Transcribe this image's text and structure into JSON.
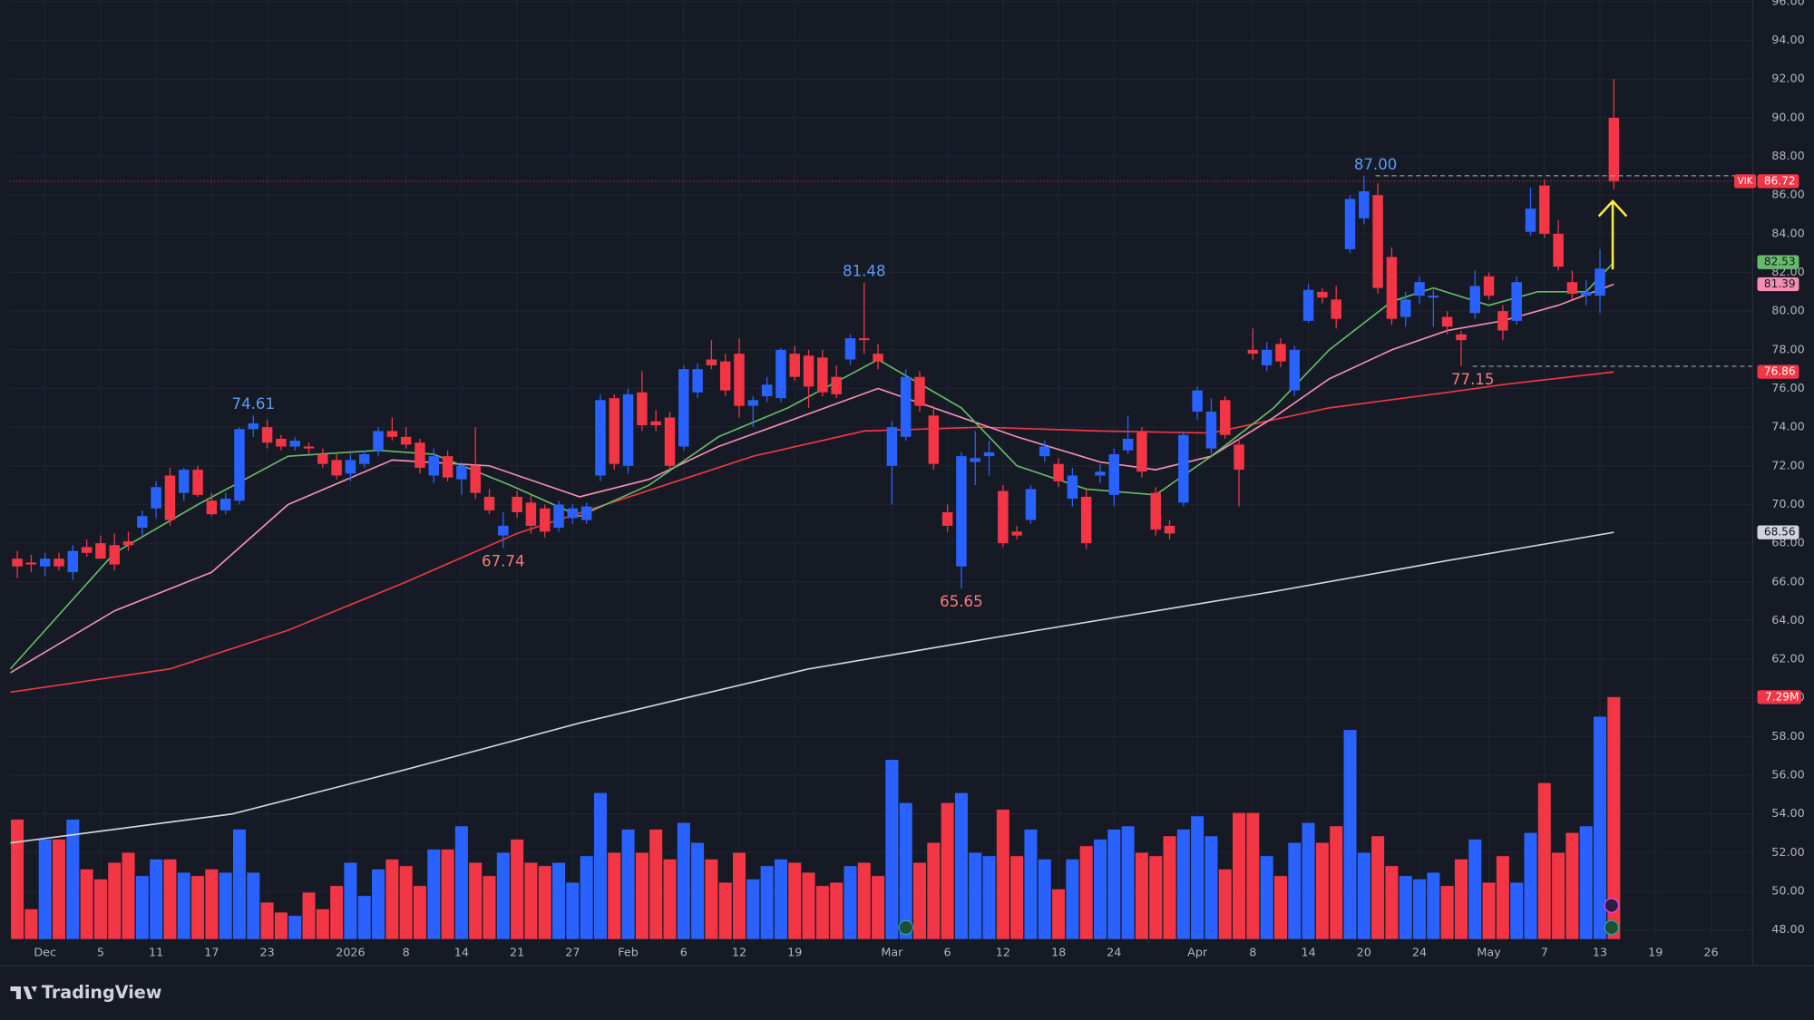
{
  "chart_data": {
    "type": "candlestick",
    "symbol": "VIK",
    "up_color": "#2962ff",
    "down_color": "#f23645",
    "open": [
      67.2,
      67.0,
      66.8,
      67.2,
      66.5,
      67.8,
      68.0,
      67.9,
      68.1,
      68.8,
      69.8,
      71.5,
      70.6,
      71.8,
      70.2,
      69.7,
      70.2,
      73.9,
      74.0,
      73.4,
      73.0,
      73.0,
      72.6,
      72.3,
      71.6,
      72.1,
      72.8,
      73.8,
      73.5,
      73.2,
      71.5,
      72.5,
      71.3,
      72.0,
      70.4,
      68.4,
      70.4,
      70.1,
      69.8,
      68.8,
      69.3,
      69.2,
      71.5,
      75.5,
      72.0,
      75.8,
      74.3,
      74.5,
      73.0,
      75.8,
      77.5,
      77.4,
      77.8,
      75.1,
      75.6,
      75.5,
      77.8,
      77.7,
      77.6,
      76.6,
      77.5,
      78.6,
      77.8,
      72.0,
      73.5,
      76.6,
      74.6,
      69.6,
      66.8,
      72.2,
      72.5,
      70.7,
      68.6,
      69.2,
      72.5,
      72.1,
      70.3,
      70.4,
      71.5,
      70.5,
      72.8,
      73.8,
      70.6,
      68.9,
      70.1,
      74.8,
      72.9,
      75.4,
      73.1,
      78.0,
      77.2,
      78.3,
      75.9,
      79.5,
      81.0,
      80.6,
      83.2,
      84.8,
      86.0,
      82.8,
      79.7,
      80.8,
      80.7,
      79.7,
      78.8,
      79.9,
      81.8,
      80.0,
      79.5,
      84.1,
      86.5,
      84.0,
      81.5,
      80.8,
      80.8,
      90.0
    ],
    "high": [
      67.6,
      67.4,
      67.5,
      67.5,
      67.9,
      68.2,
      68.4,
      68.5,
      68.6,
      69.7,
      71.2,
      71.9,
      71.9,
      72.0,
      70.6,
      70.6,
      74.0,
      74.61,
      74.4,
      73.6,
      73.5,
      73.2,
      72.9,
      72.6,
      72.6,
      72.8,
      74.0,
      74.5,
      74.0,
      73.4,
      72.9,
      72.8,
      72.2,
      74.0,
      70.8,
      69.6,
      70.7,
      70.5,
      70.0,
      70.2,
      70.0,
      70.1,
      75.7,
      75.7,
      76.0,
      76.9,
      74.9,
      74.8,
      77.2,
      77.3,
      78.5,
      77.8,
      78.6,
      75.6,
      76.6,
      78.1,
      78.2,
      78.0,
      78.0,
      77.2,
      78.8,
      81.48,
      78.3,
      74.3,
      77.0,
      76.9,
      75.1,
      70.0,
      72.7,
      73.8,
      73.3,
      71.0,
      68.9,
      71.0,
      73.3,
      72.4,
      71.9,
      70.8,
      72.1,
      72.9,
      74.6,
      74.0,
      70.9,
      69.2,
      73.8,
      76.1,
      75.5,
      75.6,
      73.4,
      79.1,
      78.4,
      78.6,
      78.2,
      81.4,
      81.2,
      81.3,
      86.0,
      87.0,
      86.6,
      83.3,
      81.0,
      81.8,
      81.1,
      80.0,
      79.0,
      82.1,
      82.0,
      80.3,
      81.8,
      86.4,
      86.8,
      84.7,
      82.1,
      81.6,
      83.2,
      92.0
    ],
    "low": [
      66.2,
      66.5,
      66.3,
      66.6,
      66.1,
      67.3,
      67.2,
      66.6,
      67.6,
      68.4,
      69.3,
      68.9,
      70.2,
      70.4,
      69.4,
      69.5,
      70.0,
      73.5,
      72.9,
      72.8,
      72.8,
      72.6,
      71.9,
      71.3,
      71.2,
      71.9,
      72.5,
      73.3,
      72.9,
      71.6,
      71.1,
      71.2,
      70.5,
      70.3,
      69.5,
      67.74,
      69.3,
      68.5,
      68.3,
      68.6,
      69.0,
      69.0,
      71.2,
      71.8,
      71.6,
      73.8,
      73.8,
      71.8,
      72.8,
      75.5,
      77.0,
      75.6,
      74.5,
      74.0,
      75.3,
      75.3,
      76.4,
      75.0,
      75.6,
      75.5,
      77.2,
      77.8,
      77.0,
      70.0,
      73.3,
      74.8,
      71.8,
      68.6,
      65.65,
      71.0,
      71.5,
      67.8,
      68.2,
      69.0,
      72.2,
      70.9,
      69.9,
      67.7,
      71.1,
      69.9,
      72.6,
      71.4,
      68.4,
      68.2,
      69.9,
      74.4,
      72.6,
      73.4,
      69.9,
      77.5,
      76.9,
      77.1,
      75.6,
      79.4,
      80.4,
      79.1,
      83.0,
      84.5,
      80.9,
      79.3,
      79.2,
      80.4,
      79.2,
      78.8,
      77.15,
      79.6,
      80.6,
      78.5,
      79.3,
      83.9,
      83.8,
      82.1,
      80.6,
      80.3,
      79.9,
      86.3
    ],
    "close": [
      66.8,
      66.9,
      67.2,
      66.8,
      67.6,
      67.5,
      67.2,
      66.9,
      67.9,
      69.4,
      70.9,
      69.2,
      71.8,
      70.5,
      69.5,
      70.3,
      73.9,
      74.2,
      73.2,
      73.0,
      73.3,
      72.9,
      72.1,
      71.5,
      72.3,
      72.6,
      73.8,
      73.5,
      73.1,
      71.9,
      72.5,
      71.4,
      72.0,
      70.6,
      69.7,
      68.9,
      69.6,
      68.9,
      68.6,
      70.0,
      69.8,
      69.9,
      75.4,
      72.1,
      75.7,
      74.1,
      74.1,
      72.0,
      77.0,
      77.0,
      77.2,
      75.9,
      75.1,
      75.4,
      76.2,
      78.0,
      76.6,
      76.1,
      75.8,
      75.7,
      78.6,
      78.5,
      77.4,
      74.0,
      76.6,
      75.1,
      72.1,
      68.9,
      72.5,
      72.4,
      72.7,
      68.0,
      68.4,
      70.8,
      73.0,
      71.2,
      71.5,
      68.0,
      71.7,
      72.6,
      73.4,
      71.7,
      68.7,
      68.5,
      73.6,
      75.9,
      74.8,
      73.6,
      71.8,
      77.8,
      78.0,
      77.4,
      78.0,
      81.1,
      80.7,
      79.6,
      85.8,
      86.2,
      81.2,
      79.6,
      80.6,
      81.5,
      80.8,
      79.2,
      78.5,
      81.3,
      80.8,
      79.0,
      81.5,
      85.3,
      84.0,
      82.3,
      80.9,
      81.0,
      82.2,
      86.72
    ],
    "volume": [
      3.6,
      0.9,
      3.0,
      3.0,
      3.6,
      2.1,
      1.8,
      2.3,
      2.6,
      1.9,
      2.4,
      2.4,
      2.0,
      1.9,
      2.1,
      2.0,
      3.3,
      2.0,
      1.1,
      0.8,
      0.7,
      1.4,
      0.9,
      1.6,
      2.3,
      1.3,
      2.1,
      2.4,
      2.2,
      1.6,
      2.7,
      2.7,
      3.4,
      2.3,
      1.9,
      2.6,
      3.0,
      2.3,
      2.2,
      2.3,
      1.7,
      2.5,
      4.4,
      2.6,
      3.3,
      2.6,
      3.3,
      2.4,
      3.5,
      2.9,
      2.4,
      1.7,
      2.6,
      1.8,
      2.2,
      2.4,
      2.3,
      2.0,
      1.6,
      1.7,
      2.2,
      2.3,
      1.9,
      5.4,
      4.1,
      2.3,
      2.9,
      4.1,
      4.4,
      2.6,
      2.5,
      3.9,
      2.5,
      3.3,
      2.4,
      1.5,
      2.4,
      2.8,
      3.0,
      3.3,
      3.4,
      2.6,
      2.5,
      3.1,
      3.3,
      3.7,
      3.1,
      2.1,
      3.8,
      3.8,
      2.5,
      1.9,
      2.9,
      3.5,
      2.9,
      3.4,
      6.3,
      2.6,
      3.1,
      2.2,
      1.9,
      1.8,
      2.0,
      1.6,
      2.4,
      3.0,
      1.7,
      2.5,
      1.7,
      3.2,
      4.7,
      2.6,
      3.2,
      3.4,
      6.7,
      7.29
    ],
    "last_volume_label": "7.29M",
    "series": [
      {
        "color": "#d1d4dc",
        "tag_text_color": "#131722",
        "x": [
          -0.5,
          15.5,
          28,
          40.5,
          57,
          73.5,
          90.5,
          103,
          115
        ],
        "values": [
          52.5,
          54,
          56.3,
          58.7,
          61.5,
          63.5,
          65.5,
          67.1,
          68.56
        ]
      },
      {
        "color": "#f23645",
        "tag_text_color": "#ffffff",
        "x": [
          -0.5,
          11,
          19.5,
          28,
          36,
          44.5,
          53,
          61,
          69.5,
          78,
          86,
          94.5,
          103,
          107,
          115
        ],
        "values": [
          60.3,
          61.5,
          63.5,
          66,
          68.5,
          70.5,
          72.5,
          73.8,
          74,
          73.8,
          73.7,
          75,
          75.8,
          76.2,
          76.86
        ]
      },
      {
        "color": "#f48fb1",
        "tag_text_color": "#131722",
        "x": [
          -0.5,
          7,
          14,
          19.5,
          27,
          34,
          40.5,
          45.5,
          50.5,
          55.5,
          62,
          68,
          72,
          78,
          82,
          86,
          90.5,
          94.5,
          99,
          103,
          107,
          111,
          115
        ],
        "values": [
          61.3,
          64.5,
          66.5,
          70,
          72.3,
          72,
          70.4,
          71.3,
          73,
          74.3,
          76,
          74.5,
          73.5,
          72.2,
          71.8,
          72.5,
          74.5,
          76.5,
          78,
          79,
          79.5,
          80.3,
          81.39
        ]
      },
      {
        "color": "#66bb6a",
        "tag_text_color": "#131722",
        "x": [
          -0.5,
          7,
          13,
          19.5,
          26,
          30,
          35.5,
          40.5,
          45.5,
          50.5,
          55.5,
          62,
          68,
          72,
          77,
          82,
          86,
          90.5,
          94.5,
          99,
          102,
          106,
          109.5,
          113,
          115
        ],
        "values": [
          61.5,
          67.5,
          70,
          72.5,
          72.8,
          72.6,
          71,
          69.4,
          71,
          73.5,
          75,
          77.5,
          75,
          72,
          70.8,
          70.5,
          72.5,
          75,
          78,
          80.5,
          81.2,
          80.3,
          81,
          81,
          82.53
        ]
      }
    ],
    "high_label_color": "#5b9cf6",
    "low_label_color": "#f77c80",
    "annotations": [
      {
        "value": 74.61,
        "label": "74.61",
        "x": 17,
        "position": "above",
        "line": false
      },
      {
        "value": 67.74,
        "label": "67.74",
        "x": 35,
        "position": "below",
        "line": false
      },
      {
        "value": 81.48,
        "label": "81.48",
        "x": 61,
        "position": "above",
        "line": false
      },
      {
        "value": 65.65,
        "label": "65.65",
        "x": 68,
        "position": "below",
        "line": false
      },
      {
        "value": 87,
        "label": "87.00",
        "x": 97,
        "position": "above",
        "line": true
      },
      {
        "value": 77.15,
        "label": "77.15",
        "x": 104,
        "position": "below",
        "line": true
      }
    ],
    "xlim": [
      -0.58,
      125
    ],
    "xticks": [
      {
        "value": 2,
        "label": "Dec"
      },
      {
        "value": 6,
        "label": "5"
      },
      {
        "value": 10,
        "label": "11"
      },
      {
        "value": 14,
        "label": "17"
      },
      {
        "value": 18,
        "label": "23"
      },
      {
        "value": 24,
        "label": "2026"
      },
      {
        "value": 28,
        "label": "8"
      },
      {
        "value": 32,
        "label": "14"
      },
      {
        "value": 36,
        "label": "21"
      },
      {
        "value": 40,
        "label": "27"
      },
      {
        "value": 44,
        "label": "Feb"
      },
      {
        "value": 48,
        "label": "6"
      },
      {
        "value": 52,
        "label": "12"
      },
      {
        "value": 56,
        "label": "19"
      },
      {
        "value": 63,
        "label": "Mar"
      },
      {
        "value": 67,
        "label": "6"
      },
      {
        "value": 71,
        "label": "12"
      },
      {
        "value": 75,
        "label": "18"
      },
      {
        "value": 79,
        "label": "24"
      },
      {
        "value": 85,
        "label": "Apr"
      },
      {
        "value": 89,
        "label": "8"
      },
      {
        "value": 93,
        "label": "14"
      },
      {
        "value": 97,
        "label": "20"
      },
      {
        "value": 101,
        "label": "24"
      },
      {
        "value": 106,
        "label": "May"
      },
      {
        "value": 110,
        "label": "7"
      },
      {
        "value": 114,
        "label": "13"
      },
      {
        "value": 118,
        "label": "19"
      },
      {
        "value": 122,
        "label": "26"
      }
    ],
    "ylim": [
      47.53,
      96.09
    ],
    "yticks": [
      {
        "value": 48,
        "label": "48.00"
      },
      {
        "value": 50,
        "label": "50.00"
      },
      {
        "value": 52,
        "label": "52.00"
      },
      {
        "value": 54,
        "label": "54.00"
      },
      {
        "value": 56,
        "label": "56.00"
      },
      {
        "value": 58,
        "label": "58.00"
      },
      {
        "value": 60,
        "label": "60.00"
      },
      {
        "value": 62,
        "label": "62.00"
      },
      {
        "value": 64,
        "label": "64.00"
      },
      {
        "value": 66,
        "label": "66.00"
      },
      {
        "value": 68,
        "label": "68.00"
      },
      {
        "value": 70,
        "label": "70.00"
      },
      {
        "value": 72,
        "label": "72.00"
      },
      {
        "value": 74,
        "label": "74.00"
      },
      {
        "value": 76,
        "label": "76.00"
      },
      {
        "value": 78,
        "label": "78.00"
      },
      {
        "value": 80,
        "label": "80.00"
      },
      {
        "value": 82,
        "label": "82.00"
      },
      {
        "value": 84,
        "label": "84.00"
      },
      {
        "value": 86,
        "label": "86.00"
      },
      {
        "value": 88,
        "label": "88.00"
      },
      {
        "value": 90,
        "label": "90.00"
      },
      {
        "value": 92,
        "label": "92.00"
      },
      {
        "value": 94,
        "label": "94.00"
      },
      {
        "value": 96,
        "label": "96.00"
      }
    ],
    "grid": true,
    "branding": "TradingView"
  }
}
